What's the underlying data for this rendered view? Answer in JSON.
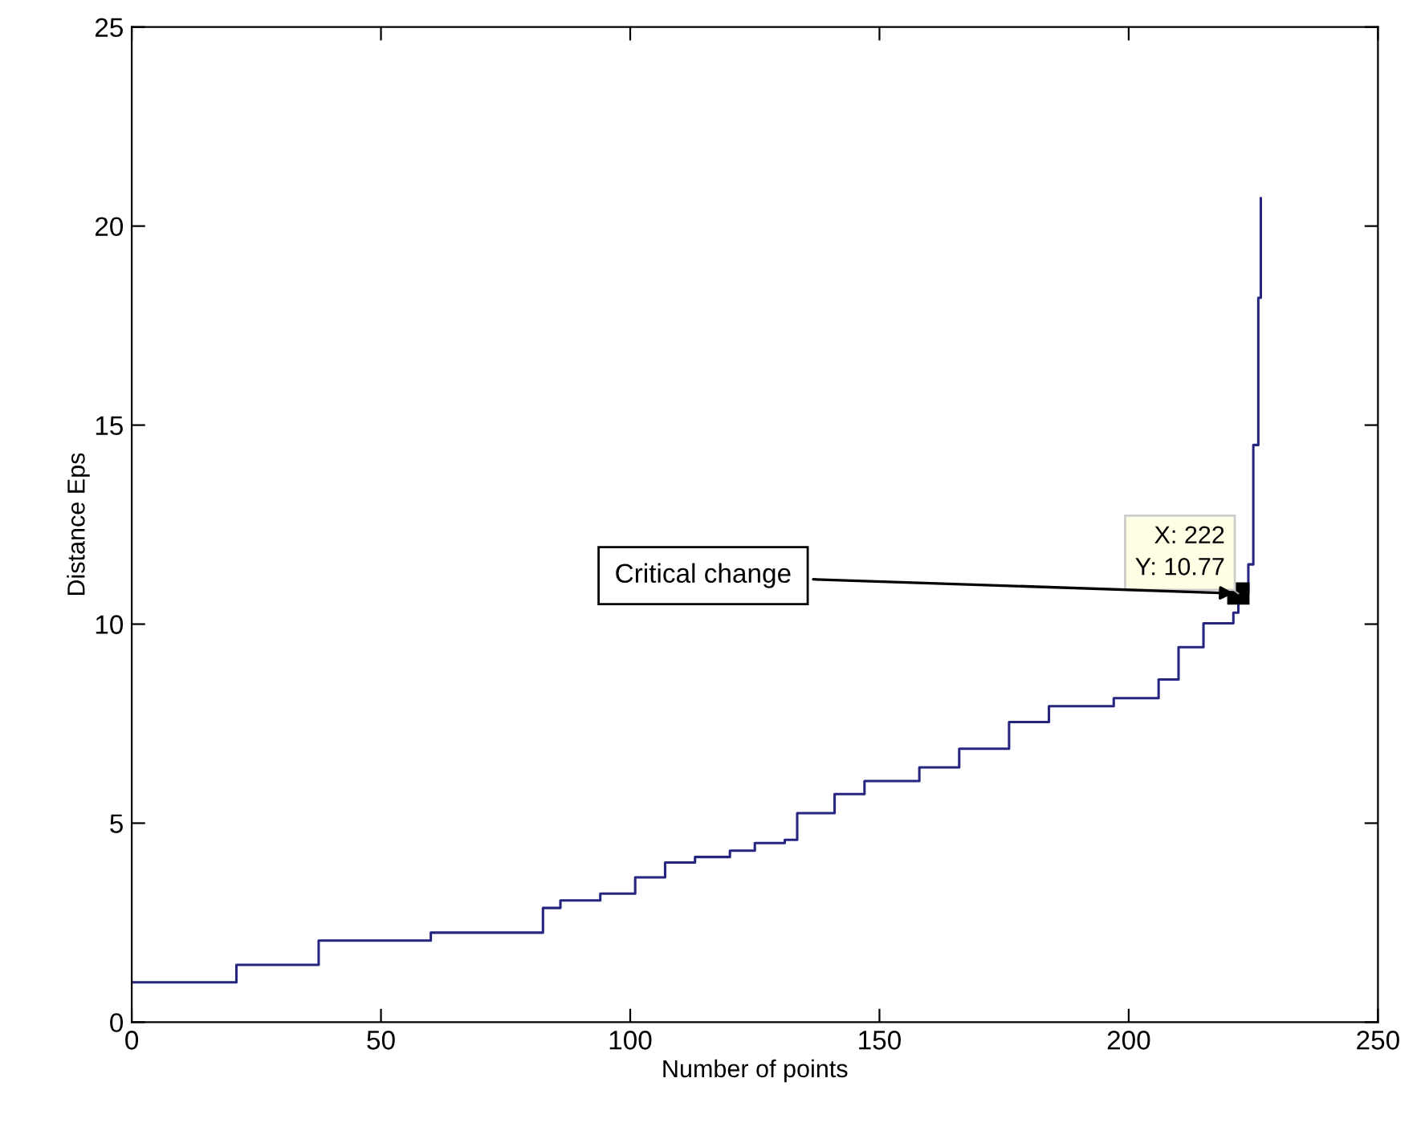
{
  "chart_data": {
    "type": "step",
    "xlabel": "Number of points",
    "ylabel": "Distance Eps",
    "xlim": [
      0,
      250
    ],
    "ylim": [
      0,
      25
    ],
    "xticks": [
      0,
      50,
      100,
      150,
      200,
      250
    ],
    "yticks": [
      0,
      5,
      10,
      15,
      20,
      25
    ],
    "grid": false,
    "legend": false,
    "marker": "none",
    "line_style": "solid",
    "series": [
      {
        "color": "#262680",
        "x": [
          0,
          21,
          37.5,
          60,
          82.5,
          86,
          94,
          101,
          107,
          113,
          120,
          125,
          131,
          133.5,
          141,
          147,
          158,
          166,
          176,
          184,
          197,
          206,
          210,
          215,
          221,
          222,
          224,
          225,
          226,
          226.5
        ],
        "values": [
          1.0,
          1.44,
          2.05,
          2.25,
          2.87,
          3.06,
          3.23,
          3.64,
          4.01,
          4.15,
          4.31,
          4.5,
          4.58,
          5.25,
          5.73,
          6.06,
          6.4,
          6.87,
          7.54,
          7.94,
          8.14,
          8.61,
          9.42,
          10.02,
          10.29,
          10.77,
          11.5,
          14.5,
          18.2,
          20.7
        ]
      }
    ],
    "annotations": [
      {
        "text": "X: 222\nY: 10.77",
        "x": 222,
        "y": 10.77
      },
      {
        "text": "Critical change",
        "x": 222,
        "y": 10.77
      }
    ]
  }
}
